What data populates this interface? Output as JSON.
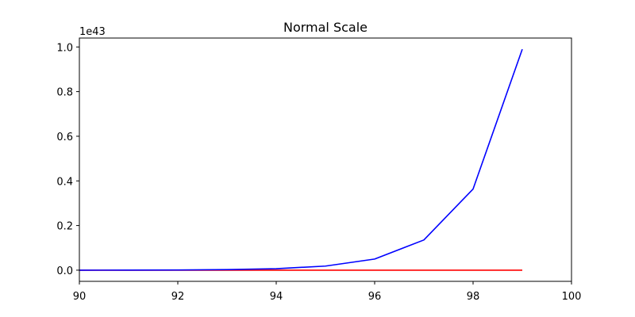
{
  "chart_data": {
    "type": "line",
    "title": "Normal Scale",
    "xlabel": "",
    "ylabel": "",
    "y_offset_label": "1e43",
    "y_scale": 1e+43,
    "xlim": [
      90,
      100
    ],
    "ylim": [
      -0.05,
      1.04
    ],
    "xticks": [
      90,
      92,
      94,
      96,
      98,
      100
    ],
    "yticks": [
      0.0,
      0.2,
      0.4,
      0.6,
      0.8,
      1.0
    ],
    "xtick_labels": [
      "90",
      "92",
      "94",
      "96",
      "98",
      "100"
    ],
    "ytick_labels": [
      "0.0",
      "0.2",
      "0.4",
      "0.6",
      "0.8",
      "1.0"
    ],
    "grid": false,
    "x": [
      90,
      91,
      92,
      93,
      94,
      95,
      96,
      97,
      98,
      99
    ],
    "series": [
      {
        "color": "#ff0000",
        "values": [
          0,
          0,
          0,
          0,
          0,
          0,
          0,
          0,
          0,
          0
        ]
      },
      {
        "color": "#0000ff",
        "values": [
          0.0,
          0.0003,
          0.0009,
          0.0025,
          0.0067,
          0.0183,
          0.0498,
          0.1353,
          0.3636,
          0.99
        ]
      }
    ]
  }
}
